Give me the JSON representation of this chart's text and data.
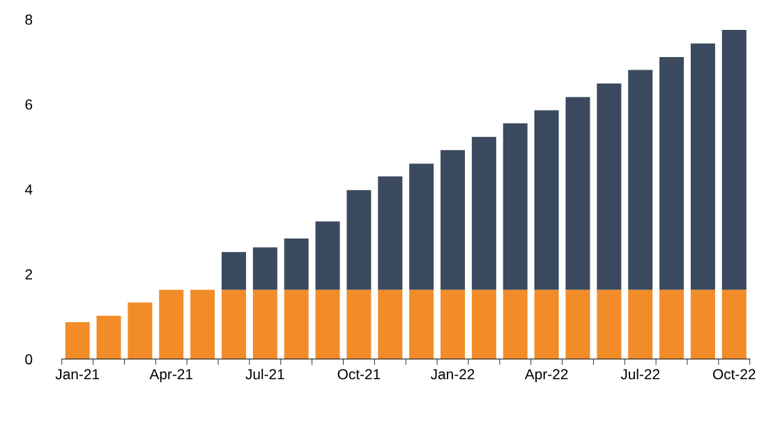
{
  "chart_data": {
    "type": "bar",
    "stacked": true,
    "categories": [
      "Jan-21",
      null,
      null,
      "Apr-21",
      null,
      null,
      "Jul-21",
      null,
      null,
      "Oct-21",
      null,
      null,
      "Jan-22",
      null,
      null,
      "Apr-22",
      null,
      null,
      "Jul-22",
      null,
      null,
      "Oct-22"
    ],
    "series": [
      {
        "color": "#f28c28",
        "values": [
          0.87,
          1.02,
          1.33,
          1.63,
          1.63,
          1.63,
          1.63,
          1.63,
          1.63,
          1.63,
          1.63,
          1.63,
          1.63,
          1.63,
          1.63,
          1.63,
          1.63,
          1.63,
          1.63,
          1.63,
          1.63,
          1.63
        ]
      },
      {
        "color": "#3b4a5e",
        "values": [
          null,
          null,
          null,
          null,
          null,
          0.89,
          1.0,
          1.21,
          1.61,
          2.35,
          2.67,
          2.97,
          3.29,
          3.6,
          3.92,
          4.23,
          4.54,
          4.86,
          5.18,
          5.48,
          5.8,
          6.12
        ]
      }
    ],
    "ylim": [
      0,
      8
    ],
    "yticks": [
      0,
      2,
      4,
      6,
      8
    ],
    "grid": false
  }
}
